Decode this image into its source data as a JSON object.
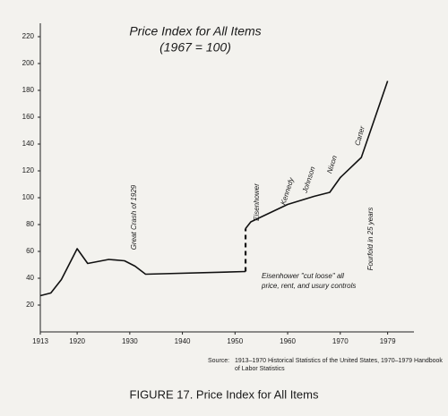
{
  "chart_data": {
    "type": "line",
    "title": "Price Index for All Items",
    "subtitle": "(1967 = 100)",
    "color": "#111111",
    "lines": [
      {
        "style": "solid",
        "x": [
          1913,
          1915,
          1917,
          1920,
          1922,
          1926,
          1929,
          1931,
          1933,
          1952
        ],
        "values": [
          27,
          29,
          39,
          62,
          51,
          54,
          53,
          49,
          43,
          45
        ]
      },
      {
        "style": "dashed",
        "x": [
          1952,
          1952
        ],
        "values": [
          45,
          77
        ]
      },
      {
        "style": "solid",
        "x": [
          1952,
          1953,
          1960,
          1965,
          1968,
          1970,
          1974,
          1979
        ],
        "values": [
          77,
          82,
          95,
          101,
          104,
          115,
          130,
          187
        ]
      }
    ],
    "xlim": [
      1913,
      1984
    ],
    "xticks": [
      1913,
      1920,
      1930,
      1940,
      1950,
      1960,
      1970,
      1979
    ],
    "ylim": [
      0,
      230
    ],
    "yticks": [
      20,
      40,
      60,
      80,
      100,
      120,
      140,
      160,
      180,
      200,
      220
    ],
    "annotations": [
      "Great Crash of 1929",
      "Eisenhower",
      "Kennedy",
      "Johnson",
      "Nixon",
      "Carter",
      "Fourfold in 25 years",
      "Eisenhower \"cut loose\" all",
      "price, rent, and usury controls"
    ],
    "source_label": "Source:",
    "source_lines": [
      "1913–1970 Historical Statistics of the United States, 1970–1979 Handbook",
      "of Labor Statistics"
    ],
    "caption": "FIGURE 17. Price Index for All Items"
  }
}
